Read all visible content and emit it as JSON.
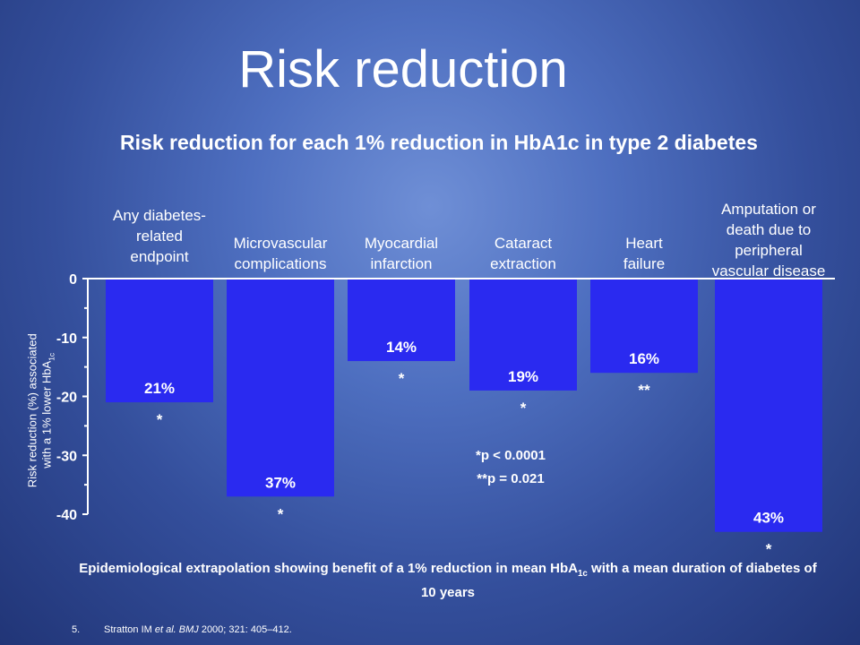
{
  "slide": {
    "title": "Risk reduction",
    "y_axis_label_line1": "Risk reduction (%) associated",
    "y_axis_label_line2_prefix": "with a  1% lower HbA",
    "y_axis_label_line2_sub": "1c",
    "pvalue_note_1": "*p < 0.0001",
    "pvalue_note_2": "**p = 0.021",
    "footnote_part1": "Epidemiological extrapolation showing benefit of a 1% reduction in mean HbA",
    "footnote_sub": "1c",
    "footnote_part2": " with a mean duration of diabetes of 10 years",
    "reference_number": "5.",
    "reference_authors": "Stratton IM ",
    "reference_etal": "et al. BMJ",
    "reference_rest": " 2000; 321: 405–412."
  },
  "chart_data": {
    "type": "bar",
    "title": "Risk reduction for each 1% reduction in HbA1c in type 2 diabetes",
    "categories": [
      [
        "Any diabetes-",
        "related",
        "endpoint"
      ],
      [
        "Microvascular",
        "complications"
      ],
      [
        "Myocardial",
        "infarction"
      ],
      [
        "Cataract",
        "extraction"
      ],
      [
        "Heart",
        "failure"
      ],
      [
        "Amputation or",
        "death due to",
        "peripheral",
        "vascular disease"
      ]
    ],
    "values": [
      -21,
      -37,
      -14,
      -19,
      -16,
      -43
    ],
    "data_labels": [
      "21%",
      "37%",
      "14%",
      "19%",
      "16%",
      "43%"
    ],
    "significance": [
      "*",
      "*",
      "*",
      "*",
      "**",
      "*"
    ],
    "yticks": [
      0,
      -10,
      -20,
      -30,
      -40
    ],
    "ylim": [
      -40,
      0
    ],
    "bar_color": "#2a2af0",
    "grid": false
  }
}
